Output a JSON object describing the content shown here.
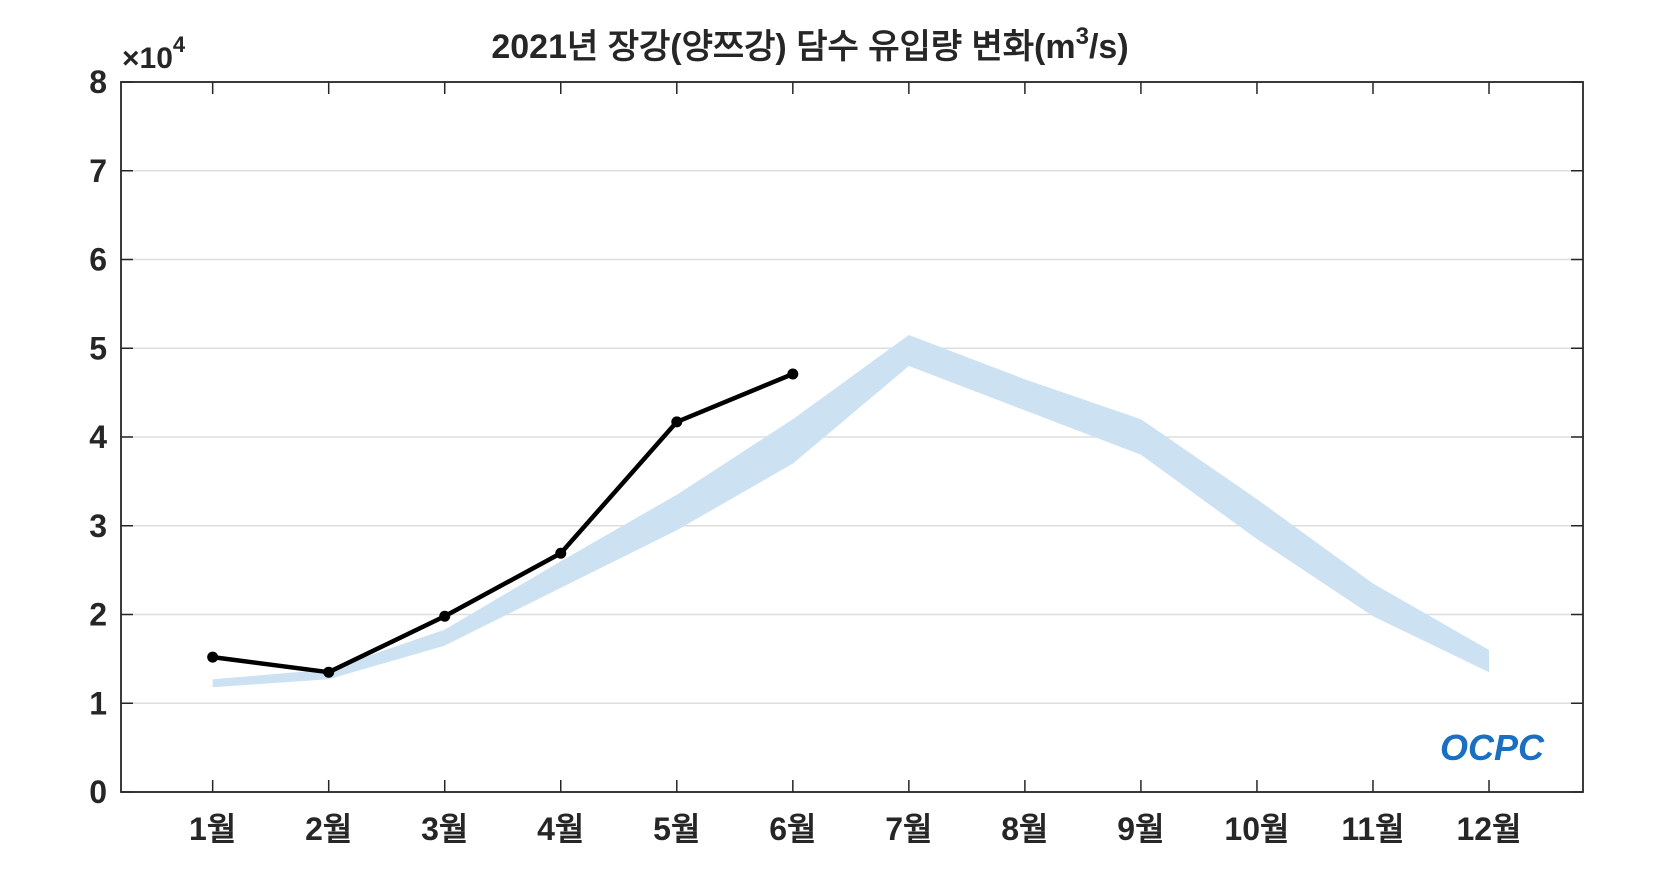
{
  "chart_data": {
    "type": "line",
    "title": "2021년 장강(양쯔강) 담수 유입량 변화(m",
    "title_superscript": "3",
    "title_suffix": "/s)",
    "y_multiplier": "×10",
    "y_multiplier_exponent": "4",
    "logo": "OCPC",
    "categories": [
      "1월",
      "2월",
      "3월",
      "4월",
      "5월",
      "6월",
      "7월",
      "8월",
      "9월",
      "10월",
      "11월",
      "12월"
    ],
    "series": [
      {
        "color": "#000000",
        "values": [
          1.52,
          1.35,
          1.98,
          2.69,
          4.17,
          4.71,
          null,
          null,
          null,
          null,
          null,
          null
        ]
      }
    ],
    "band": {
      "color": "#cce2f3",
      "lower": [
        1.18,
        1.27,
        1.65,
        2.3,
        2.95,
        3.7,
        4.8,
        4.3,
        3.8,
        2.85,
        1.98,
        1.35
      ],
      "upper": [
        1.27,
        1.38,
        1.83,
        2.6,
        3.35,
        4.2,
        5.15,
        4.65,
        4.2,
        3.3,
        2.35,
        1.6
      ]
    },
    "ylim": [
      0,
      8
    ],
    "yticks": [
      0,
      1,
      2,
      3,
      4,
      5,
      6,
      7,
      8
    ],
    "grid": true
  }
}
